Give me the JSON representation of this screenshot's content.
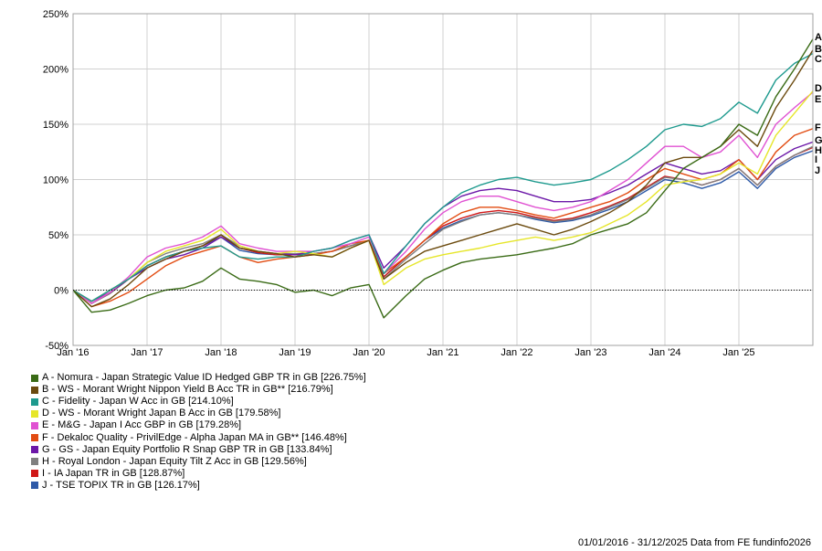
{
  "chart_data": {
    "type": "line",
    "y_unit": "%",
    "x_ticks": [
      "Jan '16",
      "Jan '17",
      "Jan '18",
      "Jan '19",
      "Jan '20",
      "Jan '21",
      "Jan '22",
      "Jan '23",
      "Jan '24",
      "Jan '25"
    ],
    "y_ticks": [
      "250%",
      "200%",
      "150%",
      "100%",
      "50%",
      "0%",
      "-50%"
    ],
    "ylim": [
      -50,
      250
    ],
    "x_range_years": [
      2016,
      2026
    ],
    "zero_line": true,
    "grid": true,
    "sample_years": [
      2016.0,
      2016.25,
      2016.5,
      2016.75,
      2017.0,
      2017.25,
      2017.5,
      2017.75,
      2018.0,
      2018.25,
      2018.5,
      2018.75,
      2019.0,
      2019.25,
      2019.5,
      2019.75,
      2020.0,
      2020.2,
      2020.5,
      2020.75,
      2021.0,
      2021.25,
      2021.5,
      2021.75,
      2022.0,
      2022.25,
      2022.5,
      2022.75,
      2023.0,
      2023.25,
      2023.5,
      2023.75,
      2024.0,
      2024.25,
      2024.5,
      2024.75,
      2025.0,
      2025.25,
      2025.5,
      2025.75,
      2026.0
    ],
    "series": [
      {
        "letter": "A",
        "name": "A - Nomura - Japan Strategic Value ID Hedged GBP TR in GB [226.75%]",
        "color": "#3a6b16",
        "values": [
          0,
          -20,
          -18,
          -12,
          -5,
          0,
          2,
          8,
          20,
          10,
          8,
          5,
          -2,
          0,
          -5,
          2,
          5,
          -25,
          -5,
          10,
          18,
          25,
          28,
          30,
          32,
          35,
          38,
          42,
          50,
          55,
          60,
          70,
          90,
          110,
          120,
          130,
          150,
          140,
          175,
          200,
          227
        ]
      },
      {
        "letter": "B",
        "name": "B - WS - Morant Wright Nippon Yield B Acc TR in GB** [216.79%]",
        "color": "#6b4a0e",
        "values": [
          0,
          -15,
          -8,
          5,
          20,
          28,
          35,
          40,
          50,
          38,
          35,
          33,
          30,
          32,
          30,
          38,
          45,
          10,
          25,
          35,
          40,
          45,
          50,
          55,
          60,
          55,
          50,
          55,
          62,
          70,
          80,
          95,
          115,
          120,
          120,
          130,
          145,
          130,
          165,
          190,
          217
        ]
      },
      {
        "letter": "C",
        "name": "C - Fidelity - Japan W Acc in GB [214.10%]",
        "color": "#1e9a8e",
        "values": [
          0,
          -10,
          0,
          10,
          22,
          30,
          35,
          38,
          40,
          30,
          28,
          30,
          30,
          35,
          38,
          45,
          50,
          15,
          40,
          60,
          75,
          88,
          95,
          100,
          102,
          98,
          95,
          97,
          100,
          108,
          118,
          130,
          145,
          150,
          148,
          155,
          170,
          160,
          190,
          205,
          214
        ]
      },
      {
        "letter": "D",
        "name": "D - WS - Morant Wright Japan B Acc in GB [179.58%]",
        "color": "#e6e62a",
        "values": [
          0,
          -10,
          0,
          10,
          25,
          35,
          40,
          45,
          55,
          40,
          35,
          33,
          35,
          33,
          30,
          38,
          45,
          5,
          20,
          28,
          32,
          35,
          38,
          42,
          45,
          48,
          45,
          48,
          52,
          60,
          68,
          80,
          95,
          98,
          100,
          105,
          115,
          105,
          140,
          160,
          180
        ]
      },
      {
        "letter": "E",
        "name": "E - M&G - Japan I Acc GBP in GB [179.28%]",
        "color": "#e052d2",
        "values": [
          0,
          -12,
          -2,
          12,
          30,
          38,
          42,
          48,
          58,
          42,
          38,
          35,
          35,
          35,
          38,
          42,
          48,
          15,
          35,
          55,
          70,
          80,
          85,
          85,
          80,
          75,
          72,
          75,
          80,
          90,
          100,
          115,
          130,
          130,
          120,
          125,
          140,
          120,
          150,
          165,
          179
        ]
      },
      {
        "letter": "F",
        "name": "F - Dekaloc Quality - PrivilEdge - Alpha Japan MA in GB** [146.48%]",
        "color": "#e24c12",
        "values": [
          0,
          -15,
          -10,
          -2,
          10,
          22,
          30,
          35,
          40,
          30,
          25,
          28,
          30,
          32,
          35,
          42,
          45,
          15,
          30,
          45,
          60,
          70,
          75,
          75,
          72,
          68,
          65,
          70,
          75,
          80,
          88,
          100,
          110,
          105,
          100,
          105,
          118,
          100,
          125,
          140,
          146
        ]
      },
      {
        "letter": "G",
        "name": "G - GS - Japan Equity Portfolio R Snap GBP TR in GB [133.84%]",
        "color": "#6c18a8",
        "values": [
          0,
          -10,
          -2,
          10,
          20,
          28,
          32,
          38,
          48,
          38,
          35,
          33,
          32,
          35,
          38,
          45,
          50,
          20,
          40,
          60,
          75,
          85,
          90,
          92,
          90,
          85,
          80,
          80,
          82,
          88,
          95,
          105,
          115,
          110,
          105,
          108,
          118,
          100,
          118,
          128,
          134
        ]
      },
      {
        "letter": "H",
        "name": "H - Royal London - Japan Equity Tilt Z Acc in GB [129.56%]",
        "color": "#808080",
        "values": [
          0,
          -12,
          -3,
          10,
          25,
          33,
          38,
          42,
          50,
          40,
          35,
          33,
          33,
          33,
          35,
          40,
          45,
          10,
          28,
          42,
          55,
          62,
          68,
          70,
          68,
          65,
          62,
          64,
          68,
          75,
          82,
          92,
          102,
          100,
          95,
          100,
          110,
          95,
          112,
          122,
          130
        ]
      },
      {
        "letter": "I",
        "name": "I - IA Japan TR in GB [128.87%]",
        "color": "#d01818",
        "values": [
          0,
          -12,
          -3,
          10,
          22,
          30,
          35,
          40,
          50,
          38,
          34,
          32,
          32,
          33,
          35,
          40,
          45,
          12,
          30,
          45,
          58,
          65,
          70,
          72,
          70,
          66,
          63,
          65,
          70,
          76,
          83,
          93,
          103,
          100,
          95,
          100,
          110,
          95,
          112,
          122,
          129
        ]
      },
      {
        "letter": "J",
        "name": "J - TSE TOPIX TR in GB [126.17%]",
        "color": "#2e5aa8",
        "values": [
          0,
          -12,
          -3,
          10,
          22,
          30,
          35,
          40,
          48,
          36,
          33,
          32,
          32,
          33,
          35,
          40,
          45,
          12,
          30,
          45,
          56,
          63,
          68,
          70,
          68,
          64,
          61,
          63,
          67,
          73,
          80,
          90,
          100,
          97,
          92,
          97,
          107,
          92,
          110,
          120,
          126
        ]
      }
    ]
  },
  "footer": "01/01/2016 - 31/12/2025 Data from FE fundinfo2026"
}
